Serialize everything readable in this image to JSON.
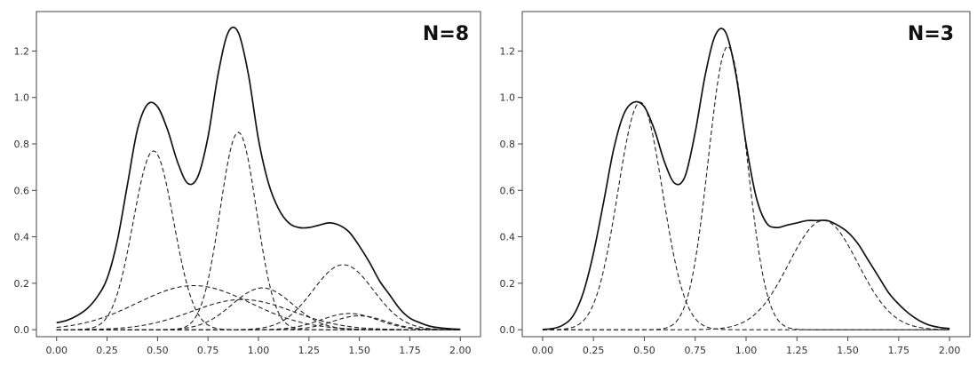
{
  "chart_data": [
    {
      "type": "line",
      "annotation": "N=8",
      "xlim": [
        -0.1,
        2.1
      ],
      "ylim": [
        -0.03,
        1.37
      ],
      "xticks": [
        0.0,
        0.25,
        0.5,
        0.75,
        1.0,
        1.25,
        1.5,
        1.75,
        2.0
      ],
      "xticklabels": [
        "0.00",
        "0.25",
        "0.50",
        "0.75",
        "1.00",
        "1.25",
        "1.50",
        "1.75",
        "2.00"
      ],
      "yticks": [
        0.0,
        0.2,
        0.4,
        0.6,
        0.8,
        1.0,
        1.2
      ],
      "yticklabels": [
        "0.0",
        "0.2",
        "0.4",
        "0.6",
        "0.8",
        "1.0",
        "1.2"
      ],
      "grid": false,
      "total": {
        "x": [
          0.0,
          0.05,
          0.1,
          0.15,
          0.2,
          0.25,
          0.3,
          0.35,
          0.4,
          0.45,
          0.5,
          0.55,
          0.6,
          0.65,
          0.7,
          0.75,
          0.8,
          0.85,
          0.9,
          0.95,
          1.0,
          1.05,
          1.1,
          1.15,
          1.2,
          1.25,
          1.3,
          1.35,
          1.4,
          1.45,
          1.5,
          1.55,
          1.6,
          1.65,
          1.7,
          1.75,
          1.8,
          1.85,
          1.9,
          1.95,
          2.0
        ],
        "y": [
          0.03,
          0.04,
          0.06,
          0.09,
          0.14,
          0.22,
          0.38,
          0.62,
          0.86,
          0.97,
          0.96,
          0.86,
          0.72,
          0.63,
          0.66,
          0.83,
          1.1,
          1.28,
          1.28,
          1.1,
          0.82,
          0.63,
          0.52,
          0.46,
          0.44,
          0.44,
          0.45,
          0.46,
          0.45,
          0.42,
          0.36,
          0.29,
          0.21,
          0.15,
          0.09,
          0.05,
          0.03,
          0.015,
          0.008,
          0.004,
          0.002
        ]
      },
      "components": [
        {
          "center": 0.48,
          "amplitude": 0.77,
          "sigma": 0.1
        },
        {
          "center": 0.9,
          "amplitude": 0.85,
          "sigma": 0.09
        },
        {
          "center": 0.68,
          "amplitude": 0.19,
          "sigma": 0.28
        },
        {
          "center": 1.02,
          "amplitude": 0.18,
          "sigma": 0.15
        },
        {
          "center": 0.92,
          "amplitude": 0.13,
          "sigma": 0.25
        },
        {
          "center": 1.42,
          "amplitude": 0.28,
          "sigma": 0.15
        },
        {
          "center": 1.45,
          "amplitude": 0.07,
          "sigma": 0.14
        },
        {
          "center": 1.5,
          "amplitude": 0.06,
          "sigma": 0.13
        }
      ]
    },
    {
      "type": "line",
      "annotation": "N=3",
      "xlim": [
        -0.1,
        2.1
      ],
      "ylim": [
        -0.03,
        1.37
      ],
      "xticks": [
        0.0,
        0.25,
        0.5,
        0.75,
        1.0,
        1.25,
        1.5,
        1.75,
        2.0
      ],
      "xticklabels": [
        "0.00",
        "0.25",
        "0.50",
        "0.75",
        "1.00",
        "1.25",
        "1.50",
        "1.75",
        "2.00"
      ],
      "yticks": [
        0.0,
        0.2,
        0.4,
        0.6,
        0.8,
        1.0,
        1.2
      ],
      "yticklabels": [
        "0.0",
        "0.2",
        "0.4",
        "0.6",
        "0.8",
        "1.0",
        "1.2"
      ],
      "grid": false,
      "total": {
        "x": [
          0.0,
          0.05,
          0.1,
          0.15,
          0.2,
          0.25,
          0.3,
          0.35,
          0.4,
          0.45,
          0.5,
          0.55,
          0.6,
          0.65,
          0.7,
          0.75,
          0.8,
          0.85,
          0.9,
          0.95,
          1.0,
          1.05,
          1.1,
          1.15,
          1.2,
          1.25,
          1.3,
          1.35,
          1.4,
          1.45,
          1.5,
          1.55,
          1.6,
          1.65,
          1.7,
          1.75,
          1.8,
          1.85,
          1.9,
          1.95,
          2.0
        ],
        "y": [
          0.001,
          0.005,
          0.02,
          0.06,
          0.16,
          0.33,
          0.55,
          0.78,
          0.93,
          0.98,
          0.96,
          0.86,
          0.72,
          0.63,
          0.66,
          0.85,
          1.1,
          1.27,
          1.28,
          1.1,
          0.8,
          0.57,
          0.46,
          0.44,
          0.45,
          0.46,
          0.47,
          0.47,
          0.47,
          0.45,
          0.42,
          0.37,
          0.3,
          0.23,
          0.16,
          0.11,
          0.07,
          0.04,
          0.02,
          0.01,
          0.005
        ]
      },
      "components": [
        {
          "center": 0.48,
          "amplitude": 0.98,
          "sigma": 0.11
        },
        {
          "center": 0.91,
          "amplitude": 1.22,
          "sigma": 0.095
        },
        {
          "center": 1.38,
          "amplitude": 0.47,
          "sigma": 0.17
        }
      ]
    }
  ]
}
